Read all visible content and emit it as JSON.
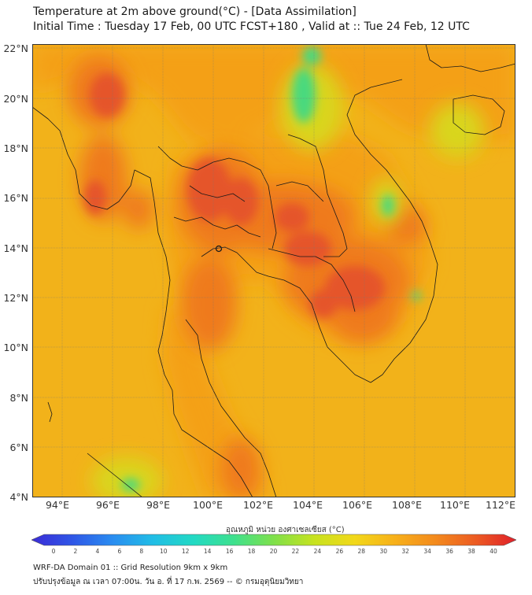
{
  "header": {
    "title": "Temperature at 2m above ground(°C) - [Data Assimilation]",
    "subtitle": "Initial Time : Tuesday 17 Feb, 00 UTC FCST+180 , Valid at :: Tue 24 Feb, 12 UTC"
  },
  "map": {
    "lat_labels": [
      "22°N",
      "20°N",
      "18°N",
      "16°N",
      "14°N",
      "12°N",
      "10°N",
      "8°N",
      "6°N",
      "4°N"
    ],
    "lon_labels": [
      "94°E",
      "96°E",
      "98°E",
      "100°E",
      "102°E",
      "104°E",
      "106°E",
      "108°E",
      "110°E",
      "112°E"
    ],
    "colors": {
      "ocean": "#f2b21a",
      "land_warm": "#f4a018",
      "hot": "#ef7a1e",
      "hottest": "#e5552a",
      "cool": "#d9d61e",
      "cold": "#49d97e",
      "border": "#1a1a1a"
    }
  },
  "colorbar": {
    "title": "อุณหภูมิ หน่วย องศาเซลเซียส (°C)",
    "ticks": [
      "0",
      "2",
      "4",
      "6",
      "8",
      "10",
      "12",
      "14",
      "16",
      "18",
      "20",
      "22",
      "24",
      "26",
      "28",
      "30",
      "32",
      "34",
      "36",
      "38",
      "40"
    ],
    "colors": [
      "#3b2bd6",
      "#2f56e6",
      "#2a8cf0",
      "#21bde6",
      "#22d9c4",
      "#3ee08e",
      "#7fe04a",
      "#c7e21f",
      "#f2d81a",
      "#f7b01a",
      "#f38a1d",
      "#ec5b22",
      "#e0202a"
    ]
  },
  "footer": {
    "line1": "WRF-DA Domain 01 :: Grid Resolution 9km x 9km",
    "line2": "ปรับปรุงข้อมูล ณ เวลา 07:00น. วัน อ. ที่ 17 ก.พ. 2569 -- © กรมอุตุนิยมวิทยา"
  }
}
